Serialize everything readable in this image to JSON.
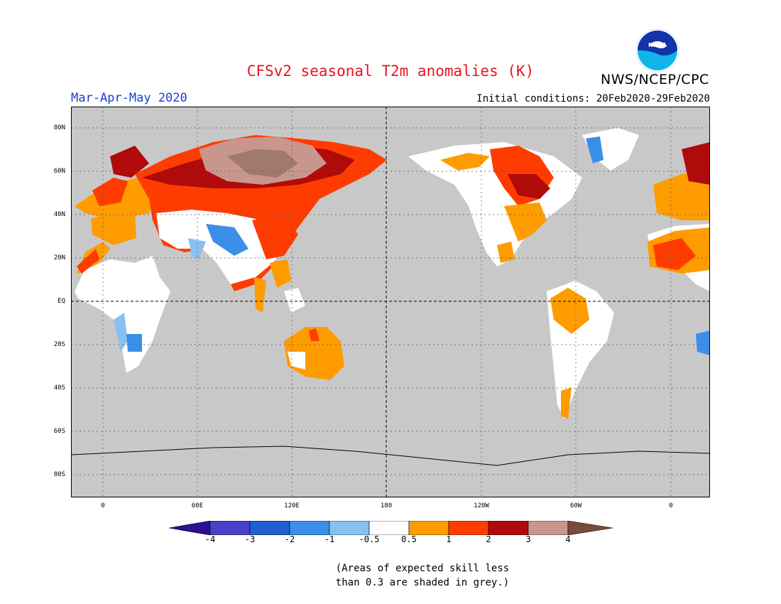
{
  "header": {
    "title": "CFSv2 seasonal T2m anomalies (K)",
    "agency": "NWS/NCEP/CPC",
    "logo_text": "NOAA",
    "season": "Mar-Apr-May 2020",
    "initial_conditions": "Initial conditions: 20Feb2020-29Feb2020"
  },
  "map": {
    "projection": "equirectangular, Pacific-centered",
    "ocean_color": "#c8c8c8",
    "lat_labels": [
      "80N",
      "60N",
      "40N",
      "20N",
      "EQ",
      "20S",
      "40S",
      "60S",
      "80S"
    ],
    "lon_labels": [
      "0",
      "60E",
      "120E",
      "180",
      "120W",
      "60W",
      "0"
    ]
  },
  "colorbar": {
    "tick_labels": [
      "-4",
      "-3",
      "-2",
      "-1",
      "-0.5",
      "0.5",
      "1",
      "2",
      "3",
      "4"
    ],
    "colors": [
      "#2d0f96",
      "#4a3fc8",
      "#1f5fd0",
      "#3a8fe8",
      "#8ac0f0",
      "#ffffff",
      "#ff9c00",
      "#ff3c00",
      "#b00a0a",
      "#c8968c",
      "#7a4a3a"
    ]
  },
  "note": {
    "line1": "(Areas of expected skill less",
    "line2": "than 0.3 are shaded in grey.)"
  }
}
